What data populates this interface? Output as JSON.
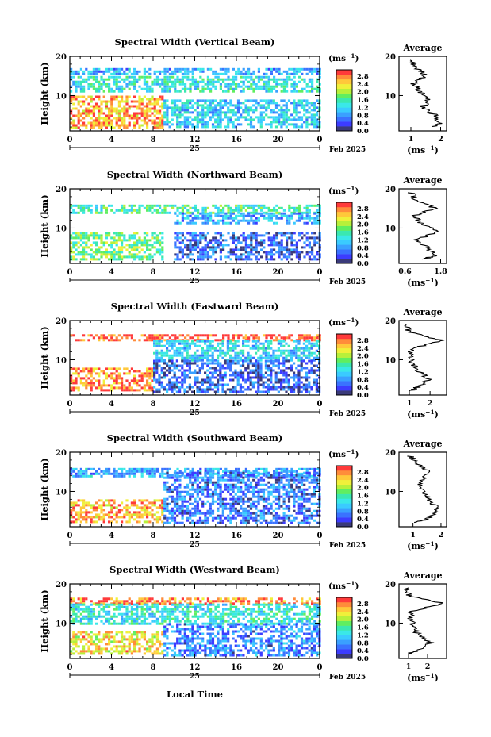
{
  "colorbar": {
    "unit": "(ms",
    "unit_sup": "−1",
    "colors": [
      "#3a3a7a",
      "#3c3cff",
      "#3a72ff",
      "#3aa0ff",
      "#3acbff",
      "#3ae8e8",
      "#3ae8b0",
      "#60ee60",
      "#b8f03a",
      "#f0f03a",
      "#ffc83a",
      "#ff8c3a",
      "#ff3a3a"
    ]
  },
  "panels": [
    {
      "title": "Spectral Width (Vertical Beam)",
      "ylabel": "Height (km)",
      "yticks": [
        "20",
        "10"
      ],
      "xticks": [
        "0",
        "4",
        "8",
        "12",
        "16",
        "20",
        "0"
      ],
      "date_day": "25",
      "date_month": "Feb 2025",
      "cbar_labels": [
        "2.8",
        "2.4",
        "2.0",
        "1.6",
        "1.2",
        "0.8",
        "0.4",
        "0.0"
      ],
      "avg_title": "Average",
      "avg_yticks": [
        "20",
        "10"
      ],
      "avg_xticks": [
        "1",
        "2"
      ],
      "avg_xlabel": "(ms",
      "avg_xlabel_sup": "−1"
    },
    {
      "title": "Spectral Width (Northward Beam)",
      "ylabel": "Height (km)",
      "yticks": [
        "20",
        "10"
      ],
      "xticks": [
        "0",
        "4",
        "8",
        "12",
        "16",
        "20",
        "0"
      ],
      "date_day": "25",
      "date_month": "Feb 2025",
      "cbar_labels": [
        "2.8",
        "2.4",
        "2.0",
        "1.6",
        "1.2",
        "0.8",
        "0.4",
        "0.0"
      ],
      "avg_title": "Average",
      "avg_yticks": [
        "20",
        "10"
      ],
      "avg_xticks": [
        "0.6",
        "1.8"
      ],
      "avg_xlabel": "(ms",
      "avg_xlabel_sup": "−1"
    },
    {
      "title": "Spectral Width (Eastward Beam)",
      "ylabel": "Height (km)",
      "yticks": [
        "20",
        "10"
      ],
      "xticks": [
        "0",
        "4",
        "8",
        "12",
        "16",
        "20",
        "0"
      ],
      "date_day": "25",
      "date_month": "Feb 2025",
      "cbar_labels": [
        "2.8",
        "2.4",
        "2.0",
        "1.6",
        "1.2",
        "0.8",
        "0.4",
        "0.0"
      ],
      "avg_title": "Average",
      "avg_yticks": [
        "20",
        "10"
      ],
      "avg_xticks": [
        "1",
        "2"
      ],
      "avg_xlabel": "(ms",
      "avg_xlabel_sup": "−1"
    },
    {
      "title": "Spectral Width (Southward Beam)",
      "ylabel": "Height (km)",
      "yticks": [
        "20",
        "10"
      ],
      "xticks": [
        "0",
        "4",
        "8",
        "12",
        "16",
        "20",
        "0"
      ],
      "date_day": "25",
      "date_month": "Feb 2025",
      "cbar_labels": [
        "2.8",
        "2.4",
        "2.0",
        "1.6",
        "1.2",
        "0.8",
        "0.4",
        "0.0"
      ],
      "avg_title": "Average",
      "avg_yticks": [
        "20",
        "10"
      ],
      "avg_xticks": [
        "1",
        "2"
      ],
      "avg_xlabel": "(ms",
      "avg_xlabel_sup": "−1"
    },
    {
      "title": "Spectral Width (Westward Beam)",
      "ylabel": "Height (km)",
      "yticks": [
        "20",
        "10"
      ],
      "xticks": [
        "0",
        "4",
        "8",
        "12",
        "16",
        "20",
        "0"
      ],
      "date_day": "25",
      "date_month": "Feb 2025",
      "cbar_labels": [
        "2.8",
        "2.4",
        "2.0",
        "1.6",
        "1.2",
        "0.8",
        "0.4",
        "0.0"
      ],
      "avg_title": "Average",
      "avg_yticks": [
        "20",
        "10"
      ],
      "avg_xticks": [
        "1",
        "2"
      ],
      "avg_xlabel": "(ms",
      "avg_xlabel_sup": "−1"
    }
  ],
  "xlabel_bottom": "Local Time",
  "chart_data": [
    {
      "type": "heatmap",
      "title": "Spectral Width (Vertical Beam)",
      "ylabel": "Height (km)",
      "xlim": [
        0,
        24
      ],
      "ylim": [
        1,
        20
      ],
      "colorbar_range": [
        0.0,
        2.8
      ],
      "layers": [
        {
          "x": [
            0,
            24
          ],
          "y": [
            15.5,
            17
          ],
          "value": 0.8
        },
        {
          "x": [
            0,
            24
          ],
          "y": [
            11,
            15
          ],
          "value": 1.2
        },
        {
          "x": [
            0,
            9
          ],
          "y": [
            2,
            10
          ],
          "value": 2.4
        },
        {
          "x": [
            9,
            24
          ],
          "y": [
            2,
            9
          ],
          "value": 1.0
        }
      ],
      "average": {
        "x": [
          1.0,
          1.2,
          1.5,
          1.1,
          1.3,
          1.6,
          1.4,
          1.8,
          2.0,
          1.7
        ],
        "y": [
          19,
          17,
          15,
          13,
          11,
          9,
          7,
          5,
          3,
          2
        ],
        "xlim": [
          0.6,
          2.2
        ]
      }
    },
    {
      "type": "heatmap",
      "title": "Spectral Width (Northward Beam)",
      "ylabel": "Height (km)",
      "xlim": [
        0,
        24
      ],
      "ylim": [
        1,
        20
      ],
      "colorbar_range": [
        0.0,
        2.8
      ],
      "layers": [
        {
          "x": [
            0,
            24
          ],
          "y": [
            14,
            16
          ],
          "value": 1.4
        },
        {
          "x": [
            10,
            24
          ],
          "y": [
            11,
            14
          ],
          "value": 0.8
        },
        {
          "x": [
            0,
            9
          ],
          "y": [
            2,
            9
          ],
          "value": 1.6
        },
        {
          "x": [
            10,
            24
          ],
          "y": [
            2,
            9
          ],
          "value": 0.4
        }
      ],
      "average": {
        "x": [
          0.8,
          1.0,
          1.6,
          0.9,
          1.2,
          1.7,
          1.0,
          1.4,
          1.6,
          1.2
        ],
        "y": [
          19,
          17,
          15,
          13,
          11,
          9,
          7,
          5,
          3,
          2
        ],
        "xlim": [
          0.4,
          2.0
        ]
      }
    },
    {
      "type": "heatmap",
      "title": "Spectral Width (Eastward Beam)",
      "ylabel": "Height (km)",
      "xlim": [
        0,
        24
      ],
      "ylim": [
        1,
        20
      ],
      "colorbar_range": [
        0.0,
        2.8
      ],
      "layers": [
        {
          "x": [
            0,
            24
          ],
          "y": [
            15,
            16.5
          ],
          "value": 2.8
        },
        {
          "x": [
            8,
            24
          ],
          "y": [
            10,
            15
          ],
          "value": 1.0
        },
        {
          "x": [
            0,
            8
          ],
          "y": [
            2,
            8
          ],
          "value": 2.6
        },
        {
          "x": [
            8,
            24
          ],
          "y": [
            2,
            10
          ],
          "value": 0.4
        }
      ],
      "average": {
        "x": [
          0.8,
          1.0,
          2.6,
          1.2,
          1.0,
          1.1,
          1.5,
          1.9,
          1.4,
          1.0
        ],
        "y": [
          19,
          17,
          15,
          13,
          11,
          9,
          7,
          5,
          3,
          2
        ],
        "xlim": [
          0.5,
          2.8
        ]
      }
    },
    {
      "type": "heatmap",
      "title": "Spectral Width (Southward Beam)",
      "ylabel": "Height (km)",
      "xlim": [
        0,
        24
      ],
      "ylim": [
        1,
        20
      ],
      "colorbar_range": [
        0.0,
        2.8
      ],
      "layers": [
        {
          "x": [
            0,
            24
          ],
          "y": [
            14,
            16
          ],
          "value": 0.8
        },
        {
          "x": [
            0,
            9
          ],
          "y": [
            2,
            8
          ],
          "value": 2.4
        },
        {
          "x": [
            9,
            24
          ],
          "y": [
            2,
            15
          ],
          "value": 0.5
        }
      ],
      "average": {
        "x": [
          0.9,
          1.2,
          1.6,
          1.3,
          1.2,
          1.5,
          1.7,
          1.9,
          1.5,
          1.1
        ],
        "y": [
          19,
          17,
          15,
          13,
          11,
          9,
          7,
          5,
          3,
          2
        ],
        "xlim": [
          0.5,
          2.2
        ]
      }
    },
    {
      "type": "heatmap",
      "title": "Spectral Width (Westward Beam)",
      "ylabel": "Height (km)",
      "xlabel": "Local Time",
      "xlim": [
        0,
        24
      ],
      "ylim": [
        1,
        20
      ],
      "colorbar_range": [
        0.0,
        2.8
      ],
      "layers": [
        {
          "x": [
            0,
            24
          ],
          "y": [
            15,
            16.5
          ],
          "value": 2.6
        },
        {
          "x": [
            0,
            24
          ],
          "y": [
            10,
            15
          ],
          "value": 1.2
        },
        {
          "x": [
            0,
            9
          ],
          "y": [
            2,
            8
          ],
          "value": 2.2
        },
        {
          "x": [
            9,
            24
          ],
          "y": [
            2,
            10
          ],
          "value": 0.6
        }
      ],
      "average": {
        "x": [
          0.9,
          1.0,
          2.8,
          1.2,
          1.1,
          1.3,
          1.5,
          2.2,
          1.4,
          1.0
        ],
        "y": [
          19,
          17,
          15,
          13,
          11,
          9,
          7,
          5,
          3,
          2
        ],
        "xlim": [
          0.5,
          3.0
        ]
      }
    }
  ]
}
